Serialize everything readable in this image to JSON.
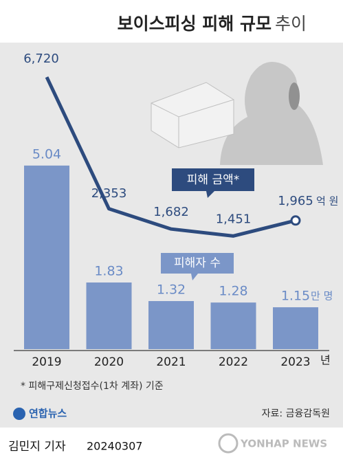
{
  "chart_data": {
    "type": "bar_line",
    "title": "보이스피싱 피해 규모",
    "title_suffix": "추이",
    "categories": [
      "2019",
      "2020",
      "2021",
      "2022",
      "2023"
    ],
    "x_unit": "년",
    "series": [
      {
        "name": "피해자 수",
        "type": "bar",
        "color": "#7b96c8",
        "label_color": "#6a8bc6",
        "unit": "만 명",
        "values": [
          5.04,
          1.83,
          1.32,
          1.28,
          1.15
        ],
        "ylim": [
          0,
          6
        ]
      },
      {
        "name": "피해 금액*",
        "type": "line",
        "axis": "y2",
        "color": "#2d4b7e",
        "unit": "억 원",
        "values": [
          6720,
          2353,
          1682,
          1451,
          1965
        ],
        "value_labels": [
          "6,720",
          "2,353",
          "1,682",
          "1,451",
          "1,965"
        ]
      }
    ],
    "y2lim": [
      0,
      8000
    ],
    "footnote": "* 피해구제신청접수(1차 계좌) 기준",
    "source": "자료: 금융감독원",
    "logo": "연합뉴스",
    "reporter": "김민지 기자",
    "date": "20240307",
    "watermark": "YONHAP NEWS"
  }
}
